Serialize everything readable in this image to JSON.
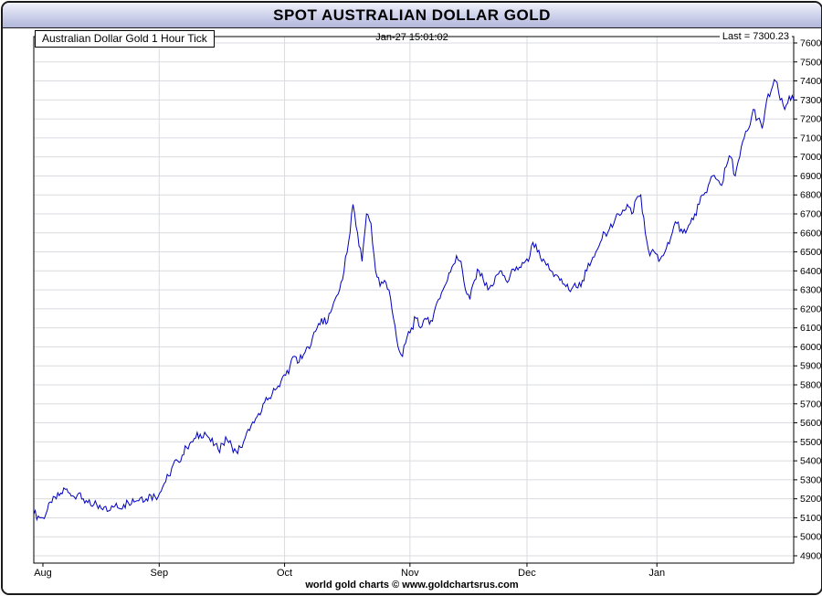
{
  "window": {
    "title": "SPOT AUSTRALIAN DOLLAR GOLD"
  },
  "chart": {
    "label": "Australian Dollar Gold 1 Hour Tick",
    "timestamp": "Jan-27  15:01:02",
    "last_label": "Last = 7300.23"
  },
  "footer": {
    "credit": "world gold charts © www.goldchartsrus.com"
  },
  "chart_data": {
    "type": "line",
    "title": "Australian Dollar Gold 1 Hour Tick",
    "ylabel": "",
    "xlabel": "",
    "ylim": [
      4900,
      7600
    ],
    "y_tick_step": 100,
    "grid": true,
    "legend_position": "none",
    "line_color": "#0000bd",
    "grid_color": "#d9dbe0",
    "last": 7300.23,
    "categories": [
      "Aug",
      "Sep",
      "Oct",
      "Nov",
      "Dec",
      "Jan"
    ],
    "x_tick_positions": [
      0.012,
      0.165,
      0.33,
      0.495,
      0.649,
      0.82
    ],
    "values": [
      5120,
      5110,
      5100,
      5140,
      5180,
      5200,
      5230,
      5250,
      5230,
      5210,
      5230,
      5200,
      5180,
      5160,
      5170,
      5150,
      5160,
      5140,
      5160,
      5150,
      5170,
      5180,
      5200,
      5190,
      5210,
      5200,
      5220,
      5210,
      5230,
      5280,
      5320,
      5380,
      5400,
      5430,
      5470,
      5500,
      5520,
      5540,
      5550,
      5520,
      5480,
      5460,
      5490,
      5510,
      5480,
      5450,
      5470,
      5520,
      5560,
      5600,
      5650,
      5700,
      5720,
      5750,
      5780,
      5820,
      5850,
      5900,
      5950,
      5920,
      5960,
      6000,
      6050,
      6100,
      6150,
      6120,
      6180,
      6250,
      6300,
      6400,
      6550,
      6750,
      6600,
      6450,
      6700,
      6650,
      6400,
      6320,
      6350,
      6300,
      6150,
      6000,
      5950,
      6050,
      6100,
      6150,
      6100,
      6150,
      6120,
      6180,
      6250,
      6300,
      6350,
      6420,
      6480,
      6450,
      6300,
      6250,
      6350,
      6400,
      6350,
      6300,
      6320,
      6380,
      6400,
      6350,
      6380,
      6400,
      6420,
      6440,
      6450,
      6550,
      6500,
      6450,
      6430,
      6400,
      6380,
      6350,
      6330,
      6300,
      6320,
      6310,
      6350,
      6400,
      6450,
      6500,
      6550,
      6600,
      6620,
      6650,
      6700,
      6720,
      6750,
      6700,
      6780,
      6800,
      6600,
      6480,
      6500,
      6450,
      6480,
      6550,
      6600,
      6650,
      6620,
      6600,
      6650,
      6700,
      6750,
      6800,
      6850,
      6900,
      6880,
      6850,
      6950,
      7000,
      6900,
      7000,
      7100,
      7150,
      7250,
      7200,
      7150,
      7300,
      7350,
      7400,
      7300,
      7250,
      7320,
      7300
    ]
  }
}
